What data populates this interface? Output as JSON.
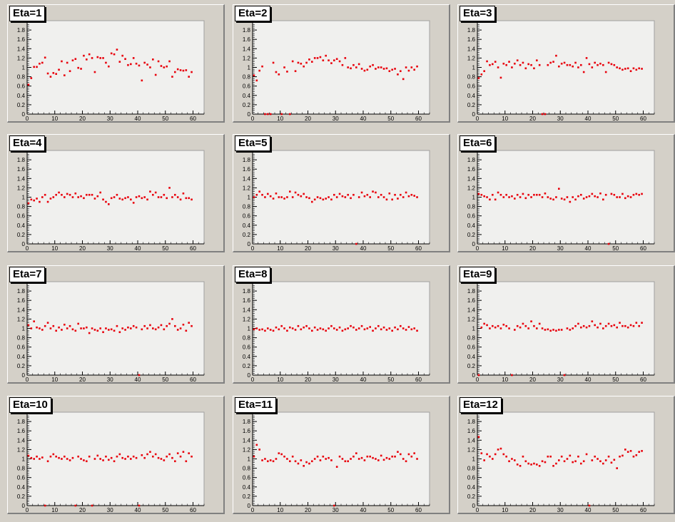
{
  "colors": {
    "background": "#d4d0c8",
    "frame": "#f0f0ee",
    "marker": "#e8000b"
  },
  "chart_data": [
    {
      "type": "scatter",
      "title": "Eta=1",
      "xlim": [
        0,
        64
      ],
      "ylim": [
        0,
        2
      ],
      "xticks": [
        "0",
        "10",
        "20",
        "30",
        "40",
        "50",
        "60"
      ],
      "yticks": [
        "0",
        "0.2",
        "0.4",
        "0.6",
        "0.8",
        "1",
        "1.2",
        "1.4",
        "1.6",
        "1.8"
      ],
      "y": [
        0.63,
        0.77,
        1.01,
        1.01,
        1.08,
        1.1,
        1.21,
        0.87,
        0.8,
        0.88,
        0.86,
        0.95,
        1.13,
        0.83,
        1.1,
        0.92,
        1.15,
        1.18,
        0.99,
        0.97,
        1.25,
        1.17,
        1.28,
        1.2,
        0.9,
        1.22,
        1.2,
        1.2,
        1.1,
        1.02,
        1.3,
        1.28,
        1.38,
        1.12,
        1.25,
        1.18,
        1.05,
        1.07,
        1.2,
        1.08,
        1.04,
        0.72,
        1.1,
        1.06,
        1.0,
        1.17,
        0.84,
        1.13,
        1.03,
        1.0,
        1.02,
        1.13,
        0.8,
        0.9,
        0.96,
        0.94,
        0.93,
        0.94,
        0.8,
        0.9
      ]
    },
    {
      "type": "scatter",
      "title": "Eta=2",
      "xlim": [
        0,
        64
      ],
      "ylim": [
        0,
        2
      ],
      "xticks": [
        "0",
        "10",
        "20",
        "30",
        "40",
        "50",
        "60"
      ],
      "yticks": [
        "0",
        "0.2",
        "0.4",
        "0.6",
        "0.8",
        "1",
        "1.2",
        "1.4",
        "1.6",
        "1.8"
      ],
      "y": [
        0.83,
        0.72,
        0.93,
        1.02,
        0,
        0,
        0,
        1.1,
        0.9,
        0.85,
        0,
        1.0,
        0.91,
        0.0,
        1.13,
        0.92,
        1.1,
        1.08,
        1.02,
        1.1,
        1.17,
        1.12,
        1.2,
        1.2,
        1.22,
        1.15,
        1.25,
        1.15,
        1.09,
        1.15,
        1.18,
        1.13,
        1.05,
        1.2,
        1.0,
        0.98,
        1.05,
        1.0,
        1.07,
        0.97,
        0.93,
        0.95,
        1.02,
        1.05,
        0.97,
        1.0,
        1.0,
        0.97,
        0.98,
        0.92,
        0.95,
        0.97,
        0.85,
        0.92,
        0.75,
        1.0,
        0.93,
        1.0,
        0.95,
        1.02
      ]
    },
    {
      "type": "scatter",
      "title": "Eta=3",
      "xlim": [
        0,
        64
      ],
      "ylim": [
        0,
        2
      ],
      "xticks": [
        "0",
        "10",
        "20",
        "30",
        "40",
        "50",
        "60"
      ],
      "yticks": [
        "0",
        "0.2",
        "0.4",
        "0.6",
        "0.8",
        "1",
        "1.2",
        "1.4",
        "1.6",
        "1.8"
      ],
      "y": [
        0.77,
        0.85,
        0.92,
        1.13,
        1.05,
        1.07,
        1.12,
        1.0,
        0.78,
        1.08,
        1.05,
        1.12,
        1.0,
        1.08,
        1.15,
        1.05,
        1.1,
        0.98,
        1.07,
        1.05,
        0.98,
        1.15,
        1.05,
        0,
        0,
        1.05,
        1.1,
        1.12,
        1.25,
        1.02,
        1.08,
        1.1,
        1.05,
        1.05,
        1.02,
        1.1,
        1.0,
        1.05,
        0.9,
        1.2,
        1.07,
        1.0,
        1.1,
        1.05,
        1.08,
        1.05,
        0.9,
        1.1,
        1.07,
        1.05,
        1.0,
        0.98,
        0.95,
        0.97,
        0.98,
        0.92,
        0.98,
        0.95,
        0.98,
        0.97
      ]
    },
    {
      "type": "scatter",
      "title": "Eta=4",
      "xlim": [
        0,
        64
      ],
      "ylim": [
        0,
        2
      ],
      "xticks": [
        "0",
        "10",
        "20",
        "30",
        "40",
        "50",
        "60"
      ],
      "yticks": [
        "0",
        "0.2",
        "0.4",
        "0.6",
        "0.8",
        "1",
        "1.2",
        "1.4",
        "1.6",
        "1.8"
      ],
      "y": [
        0.87,
        0.95,
        0.93,
        0.97,
        0.9,
        1.0,
        1.05,
        0.9,
        0.97,
        1.0,
        1.05,
        1.1,
        1.05,
        1.0,
        1.07,
        1.05,
        1.0,
        1.08,
        1.0,
        1.02,
        0.98,
        1.05,
        1.05,
        1.05,
        0.97,
        1.02,
        1.1,
        0.95,
        0.9,
        0.85,
        0.98,
        1.0,
        1.05,
        0.97,
        0.95,
        0.98,
        1.0,
        0.95,
        0.88,
        1.0,
        1.02,
        0.98,
        1.0,
        0.95,
        1.12,
        1.05,
        1.1,
        1.0,
        1.0,
        1.05,
        0.98,
        1.2,
        1.0,
        1.05,
        1.0,
        0.95,
        1.08,
        0.98,
        0.98,
        0.95
      ]
    },
    {
      "type": "scatter",
      "title": "Eta=5",
      "xlim": [
        0,
        64
      ],
      "ylim": [
        0,
        2
      ],
      "xticks": [
        "0",
        "10",
        "20",
        "30",
        "40",
        "50",
        "60"
      ],
      "yticks": [
        "0",
        "0.2",
        "0.4",
        "0.6",
        "0.8",
        "1",
        "1.2",
        "1.4",
        "1.6",
        "1.8"
      ],
      "y": [
        1.0,
        1.05,
        1.12,
        1.05,
        1.0,
        1.07,
        1.02,
        0.97,
        1.08,
        1.0,
        1.0,
        0.97,
        1.0,
        1.12,
        1.0,
        1.1,
        1.05,
        1.02,
        1.07,
        1.0,
        0.98,
        0.9,
        0.95,
        1.0,
        0.98,
        0.95,
        0.97,
        1.0,
        0.95,
        1.05,
        1.0,
        1.07,
        1.02,
        1.0,
        1.05,
        0.98,
        1.05,
        0,
        1.0,
        1.1,
        1.02,
        1.05,
        1.0,
        1.12,
        1.1,
        1.0,
        1.05,
        1.0,
        0.95,
        1.08,
        0.95,
        1.05,
        0.97,
        1.05,
        1.0,
        1.1,
        1.02,
        1.05,
        1.03,
        1.0
      ]
    },
    {
      "type": "scatter",
      "title": "Eta=6",
      "xlim": [
        0,
        64
      ],
      "ylim": [
        0,
        2
      ],
      "xticks": [
        "0",
        "10",
        "20",
        "30",
        "40",
        "50",
        "60"
      ],
      "yticks": [
        "0",
        "0.2",
        "0.4",
        "0.6",
        "0.8",
        "1",
        "1.2",
        "1.4",
        "1.6",
        "1.8"
      ],
      "y": [
        1.07,
        1.05,
        1.02,
        1.0,
        0.95,
        1.05,
        0.95,
        1.1,
        1.05,
        1.0,
        1.05,
        1.0,
        1.02,
        0.97,
        1.05,
        1.0,
        1.07,
        0.98,
        1.05,
        1.0,
        1.05,
        1.05,
        1.05,
        1.0,
        1.08,
        1.0,
        0.97,
        0.95,
        1.0,
        1.18,
        0.97,
        0.95,
        1.0,
        0.9,
        1.0,
        0.95,
        1.02,
        1.05,
        0.97,
        1.0,
        1.02,
        1.07,
        1.02,
        1.0,
        1.08,
        0.95,
        1.05,
        0,
        1.07,
        1.05,
        1.0,
        1.0,
        1.07,
        0.98,
        1.02,
        1.0,
        1.05,
        1.07,
        1.05,
        1.07
      ]
    },
    {
      "type": "scatter",
      "title": "Eta=7",
      "xlim": [
        0,
        64
      ],
      "ylim": [
        0,
        2
      ],
      "xticks": [
        "0",
        "10",
        "20",
        "30",
        "40",
        "50",
        "60"
      ],
      "yticks": [
        "0",
        "0.2",
        "0.4",
        "0.6",
        "0.8",
        "1",
        "1.2",
        "1.4",
        "1.6",
        "1.8"
      ],
      "y": [
        1.07,
        1.0,
        1.15,
        1.02,
        1.0,
        0.97,
        1.05,
        1.12,
        1.0,
        1.05,
        0.95,
        1.02,
        0.97,
        1.08,
        1.0,
        1.05,
        0.98,
        0.95,
        1.1,
        1.0,
        1.0,
        1.02,
        0.9,
        1.0,
        0.97,
        0.95,
        1.0,
        0.92,
        1.0,
        0.97,
        0.98,
        0.95,
        1.05,
        0.92,
        1.0,
        0.97,
        1.02,
        1.0,
        1.05,
        1.02,
        0,
        0.98,
        1.05,
        1.0,
        1.07,
        1.0,
        0.98,
        1.02,
        1.07,
        0.98,
        1.05,
        1.1,
        1.2,
        1.05,
        0.97,
        1.0,
        1.08,
        0.95,
        1.12,
        1.05
      ]
    },
    {
      "type": "scatter",
      "title": "Eta=8",
      "xlim": [
        0,
        64
      ],
      "ylim": [
        0,
        2
      ],
      "xticks": [
        "0",
        "10",
        "20",
        "30",
        "40",
        "50",
        "60"
      ],
      "yticks": [
        "0",
        "0.2",
        "0.4",
        "0.6",
        "0.8",
        "1",
        "1.2",
        "1.4",
        "1.6",
        "1.8"
      ],
      "y": [
        0.98,
        1.0,
        0.97,
        0.98,
        0.95,
        1.0,
        0.97,
        0.95,
        1.02,
        0.98,
        1.05,
        1.0,
        0.95,
        1.02,
        1.0,
        0.97,
        1.05,
        0.98,
        1.02,
        1.05,
        1.0,
        0.95,
        1.02,
        0.97,
        1.0,
        0.98,
        0.95,
        1.0,
        1.05,
        1.0,
        0.97,
        1.02,
        0.95,
        0.98,
        1.0,
        1.05,
        1.02,
        0.97,
        1.0,
        1.05,
        0.98,
        1.0,
        1.03,
        0.95,
        1.0,
        1.05,
        0.98,
        1.02,
        0.97,
        1.0,
        0.95,
        1.02,
        0.98,
        1.05,
        1.0,
        0.97,
        1.03,
        0.98,
        1.0,
        0.95
      ]
    },
    {
      "type": "scatter",
      "title": "Eta=9",
      "xlim": [
        0,
        64
      ],
      "ylim": [
        0,
        2
      ],
      "xticks": [
        "0",
        "10",
        "20",
        "30",
        "40",
        "50",
        "60"
      ],
      "yticks": [
        "0",
        "0.2",
        "0.4",
        "0.6",
        "0.8",
        "1",
        "1.2",
        "1.4",
        "1.6",
        "1.8"
      ],
      "y": [
        0,
        1.02,
        1.1,
        1.07,
        1.0,
        1.05,
        1.02,
        1.05,
        1.0,
        1.08,
        1.05,
        1.0,
        0,
        0.97,
        1.05,
        1.02,
        1.1,
        1.05,
        1.0,
        1.15,
        1.05,
        1.0,
        1.1,
        1.0,
        0.97,
        0.98,
        0.95,
        0.97,
        0.95,
        0.97,
        0.97,
        0,
        1.0,
        0.97,
        1.0,
        1.05,
        1.1,
        1.02,
        1.05,
        1.02,
        1.05,
        1.15,
        1.07,
        1.02,
        1.1,
        1.0,
        1.05,
        1.1,
        1.05,
        1.07,
        1.02,
        1.12,
        1.05,
        1.05,
        1.02,
        1.07,
        1.05,
        1.12,
        1.05,
        1.12
      ]
    },
    {
      "type": "scatter",
      "title": "Eta=10",
      "xlim": [
        0,
        64
      ],
      "ylim": [
        0,
        2
      ],
      "xticks": [
        "0",
        "10",
        "20",
        "30",
        "40",
        "50",
        "60"
      ],
      "yticks": [
        "0",
        "0.2",
        "0.4",
        "0.6",
        "0.8",
        "1",
        "1.2",
        "1.4",
        "1.6",
        "1.8"
      ],
      "y": [
        1.07,
        1.02,
        1.0,
        1.05,
        1.0,
        1.03,
        0,
        0.95,
        1.05,
        1.1,
        1.05,
        1.02,
        1.0,
        1.05,
        1.0,
        0.97,
        1.02,
        0,
        1.05,
        1.0,
        0.97,
        0.95,
        1.05,
        0,
        1.0,
        1.07,
        1.0,
        0.97,
        1.05,
        0.98,
        1.02,
        0.95,
        1.05,
        1.1,
        1.02,
        1.0,
        1.05,
        1.0,
        1.05,
        1.02,
        0,
        1.08,
        1.02,
        1.1,
        1.15,
        1.05,
        1.1,
        1.02,
        1.0,
        0.97,
        1.05,
        1.1,
        1.02,
        0.95,
        1.12,
        1.05,
        1.15,
        0.95,
        1.12,
        1.05
      ]
    },
    {
      "type": "scatter",
      "title": "Eta=11",
      "xlim": [
        0,
        64
      ],
      "ylim": [
        0,
        2
      ],
      "xticks": [
        "0",
        "10",
        "20",
        "30",
        "40",
        "50",
        "60"
      ],
      "yticks": [
        "0",
        "0.2",
        "0.4",
        "0.6",
        "0.8",
        "1",
        "1.2",
        "1.4",
        "1.6",
        "1.8"
      ],
      "y": [
        1.05,
        1.3,
        1.2,
        0.97,
        1.0,
        0.95,
        0.97,
        0.95,
        1.0,
        1.12,
        1.1,
        1.05,
        1.0,
        0.95,
        1.05,
        0.95,
        0.9,
        0.97,
        0.85,
        0.93,
        0.9,
        0.95,
        1.0,
        1.05,
        0.97,
        1.05,
        1.0,
        1.02,
        0.97,
        0,
        0.83,
        1.05,
        1.0,
        0.95,
        0.95,
        1.0,
        1.05,
        1.12,
        1.0,
        1.02,
        0.97,
        1.05,
        1.05,
        1.02,
        1.0,
        0.97,
        1.07,
        0.98,
        1.02,
        1.0,
        1.05,
        1.05,
        1.15,
        1.1,
        1.0,
        0.95,
        1.1,
        1.05,
        1.12,
        1.0
      ]
    },
    {
      "type": "scatter",
      "title": "Eta=12",
      "xlim": [
        0,
        64
      ],
      "ylim": [
        0,
        2
      ],
      "xticks": [
        "0",
        "10",
        "20",
        "30",
        "40",
        "50",
        "60"
      ],
      "yticks": [
        "0",
        "0.2",
        "0.4",
        "0.6",
        "0.8",
        "1",
        "1.2",
        "1.4",
        "1.6",
        "1.8"
      ],
      "y": [
        1.47,
        1.12,
        0.97,
        1.1,
        1.05,
        1.0,
        1.1,
        1.2,
        1.22,
        1.1,
        1.05,
        0.95,
        1.0,
        0.97,
        0.88,
        0.85,
        1.05,
        0.95,
        0.9,
        0.88,
        0.9,
        0.88,
        0.85,
        0.95,
        0.93,
        1.05,
        1.05,
        0.85,
        0.9,
        0.97,
        1.05,
        0.95,
        1.0,
        1.07,
        0.93,
        0.95,
        1.05,
        0.9,
        0.95,
        1.1,
        0,
        0.97,
        1.05,
        1.0,
        0.95,
        0.9,
        0.97,
        1.05,
        0.92,
        0.98,
        0.8,
        1.05,
        1.07,
        1.2,
        1.15,
        1.17,
        1.05,
        1.08,
        1.15,
        1.17
      ]
    }
  ]
}
